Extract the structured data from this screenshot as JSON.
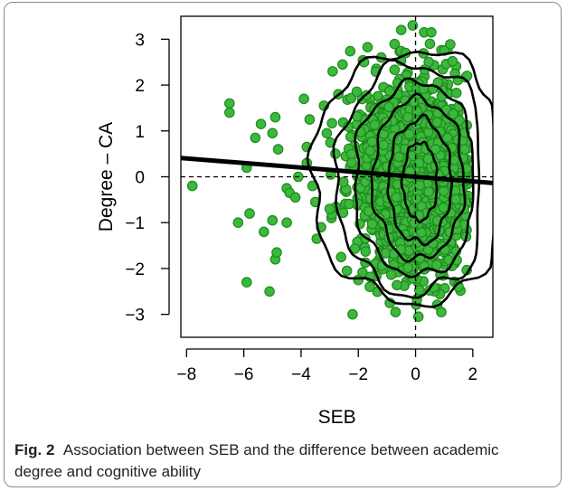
{
  "figure": {
    "label": "Fig. 2",
    "caption": "Association between SEB and the difference between academic degree and cognitive ability"
  },
  "colors": {
    "point_fill": "#3cb83c",
    "point_stroke": "#1f8a1f",
    "contour": "#000000",
    "regression": "#000000"
  },
  "chart_data": {
    "type": "scatter",
    "xlabel": "SEB",
    "ylabel": "Degree – CA",
    "xlim": [
      -8.2,
      2.7
    ],
    "ylim": [
      -3.5,
      3.5
    ],
    "xticks": [
      -8,
      -6,
      -4,
      -2,
      0,
      2
    ],
    "yticks": [
      -3,
      -2,
      -1,
      0,
      1,
      2,
      3
    ],
    "grid": false,
    "legend": "none",
    "reference_lines": {
      "vertical_x": 0,
      "horizontal_y": 0,
      "style": "dashed"
    },
    "regression_line": {
      "intercept": 0.0,
      "slope": -0.05
    },
    "density_contours": [
      {
        "level": 1,
        "center": [
          -0.05,
          0.0
        ],
        "rx": 3.6,
        "ry": 2.75,
        "clip_right": 2.65
      },
      {
        "level": 2,
        "center": [
          0.0,
          -0.05
        ],
        "rx": 2.8,
        "ry": 2.5,
        "clip_right": 2.1
      },
      {
        "level": 3,
        "center": [
          0.05,
          -0.05
        ],
        "rx": 2.2,
        "ry": 2.1,
        "clip_right": 1.95
      },
      {
        "level": 4,
        "center": [
          0.1,
          -0.05
        ],
        "rx": 1.6,
        "ry": 1.75,
        "clip_right": 1.8
      },
      {
        "level": 5,
        "center": [
          0.15,
          -0.1
        ],
        "rx": 1.1,
        "ry": 1.35
      },
      {
        "level": 6,
        "center": [
          0.15,
          -0.1
        ],
        "rx": 0.6,
        "ry": 0.85
      }
    ],
    "outlier_points": [
      {
        "x": -7.8,
        "y": -0.2
      },
      {
        "x": -6.5,
        "y": 1.6
      },
      {
        "x": -6.5,
        "y": 1.4
      },
      {
        "x": -6.2,
        "y": -1.0
      },
      {
        "x": -5.9,
        "y": -2.3
      },
      {
        "x": -5.9,
        "y": 0.2
      },
      {
        "x": -5.8,
        "y": -0.8
      },
      {
        "x": -5.6,
        "y": 0.85
      },
      {
        "x": -5.4,
        "y": 1.15
      },
      {
        "x": -5.3,
        "y": -1.2
      },
      {
        "x": -5.1,
        "y": -2.5
      },
      {
        "x": -5.0,
        "y": -0.95
      },
      {
        "x": -5.0,
        "y": 0.95
      },
      {
        "x": -4.9,
        "y": 1.3
      },
      {
        "x": -4.9,
        "y": -1.8
      },
      {
        "x": -4.85,
        "y": -1.65
      },
      {
        "x": -4.8,
        "y": 0.6
      },
      {
        "x": -4.5,
        "y": -0.25
      },
      {
        "x": -4.5,
        "y": -1.0
      },
      {
        "x": -4.4,
        "y": -0.35
      },
      {
        "x": -4.2,
        "y": -0.45
      },
      {
        "x": -4.1,
        "y": 0.0
      },
      {
        "x": -3.9,
        "y": 1.7
      },
      {
        "x": -3.8,
        "y": 0.65
      },
      {
        "x": -3.8,
        "y": 0.3
      },
      {
        "x": -3.7,
        "y": 1.25
      },
      {
        "x": -3.6,
        "y": -0.2
      },
      {
        "x": -3.5,
        "y": -0.55
      },
      {
        "x": -3.45,
        "y": -1.35
      },
      {
        "x": -3.3,
        "y": -1.1
      },
      {
        "x": -3.2,
        "y": 1.55
      },
      {
        "x": -3.1,
        "y": 0.95
      },
      {
        "x": -3.0,
        "y": -0.7
      },
      {
        "x": -2.9,
        "y": 2.3
      },
      {
        "x": -2.8,
        "y": 0.5
      },
      {
        "x": -2.7,
        "y": 1.8
      },
      {
        "x": -2.6,
        "y": -1.75
      },
      {
        "x": -2.55,
        "y": 2.45
      },
      {
        "x": -2.4,
        "y": -2.05
      },
      {
        "x": -2.2,
        "y": -3.0
      },
      {
        "x": -2.0,
        "y": -2.25
      },
      {
        "x": -1.8,
        "y": 2.5
      },
      {
        "x": -1.6,
        "y": -2.4
      },
      {
        "x": -1.2,
        "y": 2.6
      },
      {
        "x": -0.9,
        "y": -2.75
      },
      {
        "x": -0.7,
        "y": -2.95
      },
      {
        "x": -0.5,
        "y": 3.2
      },
      {
        "x": -0.35,
        "y": 2.7
      },
      {
        "x": -0.1,
        "y": 3.3
      },
      {
        "x": 0.1,
        "y": -3.05
      },
      {
        "x": 0.3,
        "y": 3.15
      },
      {
        "x": 0.5,
        "y": 2.9
      },
      {
        "x": 0.55,
        "y": 3.15
      },
      {
        "x": 0.9,
        "y": -2.95
      },
      {
        "x": 1.0,
        "y": 2.75
      },
      {
        "x": 1.5,
        "y": -2.4
      },
      {
        "x": 1.8,
        "y": 2.2
      }
    ],
    "cloud": {
      "n": 1900,
      "center": [
        0.0,
        0.0
      ],
      "sd": [
        1.0,
        1.0
      ],
      "x_range": [
        -3.3,
        1.85
      ],
      "y_range": [
        -2.9,
        2.9
      ]
    }
  }
}
